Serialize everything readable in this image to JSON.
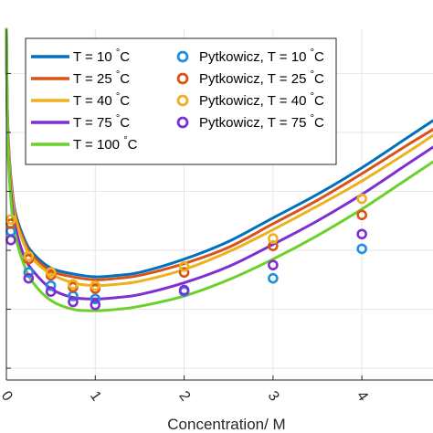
{
  "chart_data": {
    "type": "line",
    "title": "",
    "xlabel": "Concentration/ M",
    "ylabel": "",
    "xlim": [
      0,
      4.8
    ],
    "ylim": [
      -0.44,
      0.75
    ],
    "grid": true,
    "legend_placement": "top-left",
    "x_ticks": [
      {
        "value": 0,
        "label": "0"
      },
      {
        "value": 1,
        "label": "1"
      },
      {
        "value": 2,
        "label": "2"
      },
      {
        "value": 3,
        "label": "3"
      },
      {
        "value": 4,
        "label": "4"
      }
    ],
    "y_gridlines": [
      -0.4,
      -0.2,
      0,
      0.2,
      0.4,
      0.6
    ],
    "series": [
      {
        "name": "T = 10 °C",
        "kind": "line",
        "color": "#0072BD",
        "x": [
          0,
          0.01,
          0.03,
          0.06,
          0.1,
          0.2,
          0.3,
          0.5,
          0.75,
          1.0,
          1.25,
          1.5,
          2.0,
          2.5,
          3.0,
          3.5,
          4.0,
          4.5,
          4.8
        ],
        "y": [
          0.75,
          0.49,
          0.33,
          0.22,
          0.13,
          0.04,
          -0.01,
          -0.06,
          -0.08,
          -0.09,
          -0.085,
          -0.075,
          -0.03,
          0.03,
          0.11,
          0.19,
          0.28,
          0.38,
          0.44
        ]
      },
      {
        "name": "T = 25 °C",
        "kind": "line",
        "color": "#D95319",
        "x": [
          0,
          0.01,
          0.03,
          0.06,
          0.1,
          0.2,
          0.3,
          0.5,
          0.75,
          1.0,
          1.25,
          1.5,
          2.0,
          2.5,
          3.0,
          3.5,
          4.0,
          4.5,
          4.8
        ],
        "y": [
          0.75,
          0.48,
          0.32,
          0.21,
          0.12,
          0.03,
          -0.02,
          -0.07,
          -0.09,
          -0.1,
          -0.095,
          -0.085,
          -0.045,
          0.01,
          0.09,
          0.17,
          0.26,
          0.355,
          0.41
        ]
      },
      {
        "name": "T = 40 °C",
        "kind": "line",
        "color": "#EDB120",
        "x": [
          0,
          0.01,
          0.03,
          0.06,
          0.1,
          0.2,
          0.3,
          0.5,
          0.75,
          1.0,
          1.25,
          1.5,
          2.0,
          2.5,
          3.0,
          3.5,
          4.0,
          4.5,
          4.8
        ],
        "y": [
          0.75,
          0.47,
          0.31,
          0.2,
          0.11,
          0.02,
          -0.03,
          -0.08,
          -0.11,
          -0.12,
          -0.115,
          -0.105,
          -0.065,
          -0.005,
          0.07,
          0.15,
          0.235,
          0.33,
          0.39
        ]
      },
      {
        "name": "T = 75 °C",
        "kind": "line",
        "color": "#7E2FD1",
        "x": [
          0,
          0.01,
          0.03,
          0.06,
          0.1,
          0.2,
          0.3,
          0.5,
          0.75,
          1.0,
          1.25,
          1.5,
          2.0,
          2.5,
          3.0,
          3.5,
          4.0,
          4.5,
          4.8
        ],
        "y": [
          0.75,
          0.45,
          0.28,
          0.17,
          0.08,
          -0.02,
          -0.07,
          -0.13,
          -0.16,
          -0.165,
          -0.16,
          -0.15,
          -0.11,
          -0.055,
          0.02,
          0.1,
          0.19,
          0.29,
          0.35
        ]
      },
      {
        "name": "T = 100 °C",
        "kind": "line",
        "color": "#6BD12A",
        "x": [
          0,
          0.01,
          0.03,
          0.06,
          0.1,
          0.2,
          0.3,
          0.5,
          0.75,
          1.0,
          1.25,
          1.5,
          2.0,
          2.5,
          3.0,
          3.5,
          4.0,
          4.5,
          4.8
        ],
        "y": [
          0.75,
          0.43,
          0.26,
          0.14,
          0.05,
          -0.05,
          -0.11,
          -0.17,
          -0.2,
          -0.205,
          -0.2,
          -0.19,
          -0.155,
          -0.1,
          -0.03,
          0.05,
          0.14,
          0.24,
          0.3
        ]
      },
      {
        "name": "Pytkowicz, T = 10 °C",
        "kind": "scatter",
        "color": "#1F8FE0",
        "x": [
          0.05,
          0.25,
          0.5,
          0.75,
          1.0,
          2.0,
          3.0,
          4.0
        ],
        "y": [
          0.065,
          -0.075,
          -0.12,
          -0.155,
          -0.165,
          -0.14,
          -0.095,
          0.005
        ]
      },
      {
        "name": "Pytkowicz, T = 25 °C",
        "kind": "scatter",
        "color": "#D95319",
        "x": [
          0.05,
          0.25,
          0.5,
          0.75,
          1.0,
          2.0,
          3.0,
          4.0
        ],
        "y": [
          0.09,
          -0.03,
          -0.085,
          -0.125,
          -0.13,
          -0.075,
          0.015,
          0.12
        ]
      },
      {
        "name": "Pytkowicz, T = 40 °C",
        "kind": "scatter",
        "color": "#EDB120",
        "x": [
          0.05,
          0.25,
          0.5,
          0.75,
          1.0,
          2.0,
          3.0,
          4.0
        ],
        "y": [
          0.105,
          -0.02,
          -0.075,
          -0.115,
          -0.12,
          -0.055,
          0.04,
          0.175
        ]
      },
      {
        "name": "Pytkowicz, T = 75 °C",
        "kind": "scatter",
        "color": "#7E2FD1",
        "x": [
          0.05,
          0.25,
          0.5,
          0.75,
          1.0,
          2.0,
          3.0,
          4.0
        ],
        "y": [
          0.035,
          -0.095,
          -0.14,
          -0.175,
          -0.185,
          -0.135,
          -0.05,
          0.055
        ]
      }
    ],
    "legend": {
      "line_entries": [
        {
          "prefix": "T = 10 ",
          "degree": "°",
          "unit": "C",
          "color": "#0072BD"
        },
        {
          "prefix": "T = 25 ",
          "degree": "°",
          "unit": "C",
          "color": "#D95319"
        },
        {
          "prefix": "T = 40 ",
          "degree": "°",
          "unit": "C",
          "color": "#EDB120"
        },
        {
          "prefix": "T = 75 ",
          "degree": "°",
          "unit": "C",
          "color": "#7E2FD1"
        },
        {
          "prefix": "T = 100 ",
          "degree": "°",
          "unit": "C",
          "color": "#6BD12A"
        }
      ],
      "marker_entries": [
        {
          "prefix": "Pytkowicz, T = 10 ",
          "degree": "°",
          "unit": "C",
          "color": "#1F8FE0"
        },
        {
          "prefix": "Pytkowicz, T = 25 ",
          "degree": "°",
          "unit": "C",
          "color": "#D95319"
        },
        {
          "prefix": "Pytkowicz, T = 40 ",
          "degree": "°",
          "unit": "C",
          "color": "#EDB120"
        },
        {
          "prefix": "Pytkowicz, T = 75 ",
          "degree": "°",
          "unit": "C",
          "color": "#7E2FD1"
        }
      ]
    }
  }
}
